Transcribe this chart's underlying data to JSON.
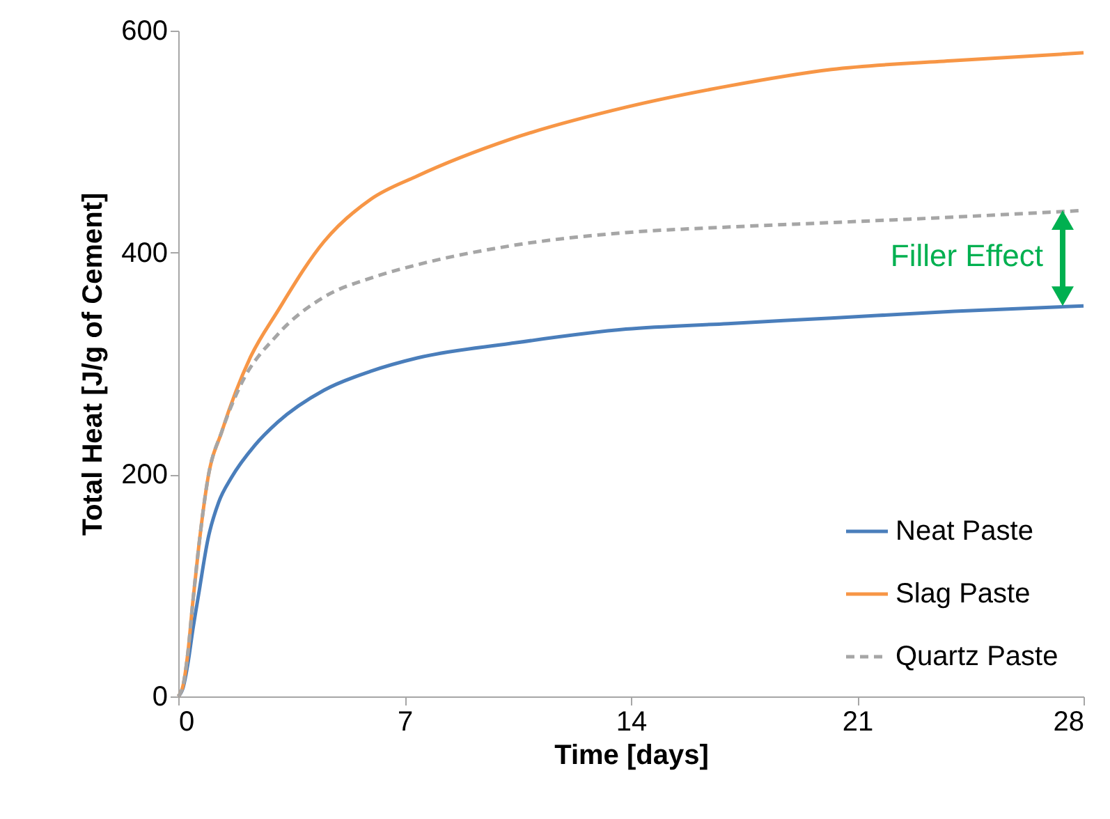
{
  "chart_data": {
    "type": "line",
    "xlabel": "Time [days]",
    "ylabel": "Total Heat [J/g of Cement]",
    "xlim": [
      0,
      28
    ],
    "xticks": [
      0,
      7,
      14,
      21,
      28
    ],
    "ylim": [
      0,
      600
    ],
    "yticks": [
      0,
      200,
      400,
      600
    ],
    "grid": false,
    "legend": "bottom right",
    "marker": "none",
    "line_style": "solid",
    "annotations": [
      "Filler Effect"
    ],
    "series": [
      {
        "name": "Neat Paste",
        "color": "#4a7ebb",
        "x": [
          0,
          0.15,
          0.3,
          0.45,
          0.63,
          0.92,
          1.25,
          1.64,
          2.36,
          3.07,
          4.51,
          5.95,
          7.39,
          10.26,
          13.85,
          17,
          20.2,
          24,
          28
        ],
        "values": [
          0,
          8,
          30,
          60,
          92,
          142,
          175,
          197,
          226,
          247,
          276,
          293,
          305,
          318,
          331,
          336,
          341,
          347,
          352
        ]
      },
      {
        "name": "Slag Paste",
        "color": "#f79646",
        "x": [
          0,
          0.15,
          0.3,
          0.45,
          0.63,
          0.92,
          1.35,
          2.22,
          3.07,
          4.51,
          5.95,
          7.39,
          10.26,
          13.85,
          17,
          20.2,
          24,
          28
        ],
        "values": [
          0,
          10,
          40,
          85,
          134,
          197,
          239,
          305,
          347,
          410,
          448,
          469,
          502,
          531,
          550,
          565,
          573,
          580
        ]
      },
      {
        "name": "Quartz Paste",
        "color": "#a6a6a6",
        "line_style": "dashed",
        "x": [
          0,
          0.15,
          0.3,
          0.45,
          0.63,
          0.92,
          1.35,
          1.92,
          3.07,
          4.51,
          5.95,
          7.39,
          10.26,
          13.85,
          17,
          20.2,
          24,
          28
        ],
        "values": [
          0,
          10,
          40,
          85,
          134,
          197,
          239,
          280,
          326,
          360,
          377,
          389,
          406,
          418,
          423,
          427,
          432,
          438
        ]
      }
    ]
  }
}
